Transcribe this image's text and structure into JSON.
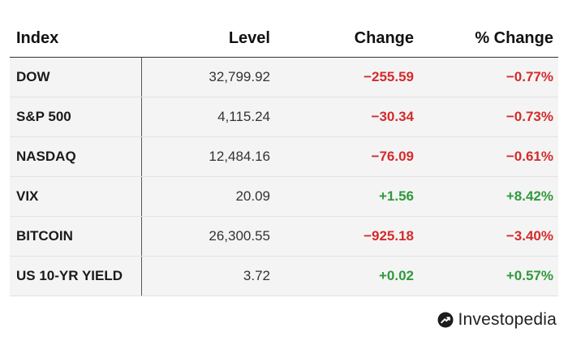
{
  "colors": {
    "negative": "#d42b2b",
    "positive": "#2f9a3c"
  },
  "table": {
    "headers": {
      "index": "Index",
      "level": "Level",
      "change": "Change",
      "pct_change": "% Change"
    },
    "rows": [
      {
        "index": "DOW",
        "level": "32,799.92",
        "change": "−255.59",
        "pct_change": "−0.77%",
        "direction": "negative"
      },
      {
        "index": "S&P 500",
        "level": "4,115.24",
        "change": "−30.34",
        "pct_change": "−0.73%",
        "direction": "negative"
      },
      {
        "index": "NASDAQ",
        "level": "12,484.16",
        "change": "−76.09",
        "pct_change": "−0.61%",
        "direction": "negative"
      },
      {
        "index": "VIX",
        "level": "20.09",
        "change": "+1.56",
        "pct_change": "+8.42%",
        "direction": "positive"
      },
      {
        "index": "BITCOIN",
        "level": "26,300.55",
        "change": "−925.18",
        "pct_change": "−3.40%",
        "direction": "negative"
      },
      {
        "index": "US 10-YR YIELD",
        "level": "3.72",
        "change": "+0.02",
        "pct_change": "+0.57%",
        "direction": "positive"
      }
    ]
  },
  "brand": {
    "name": "Investopedia",
    "icon": "investopedia-logo-icon"
  }
}
